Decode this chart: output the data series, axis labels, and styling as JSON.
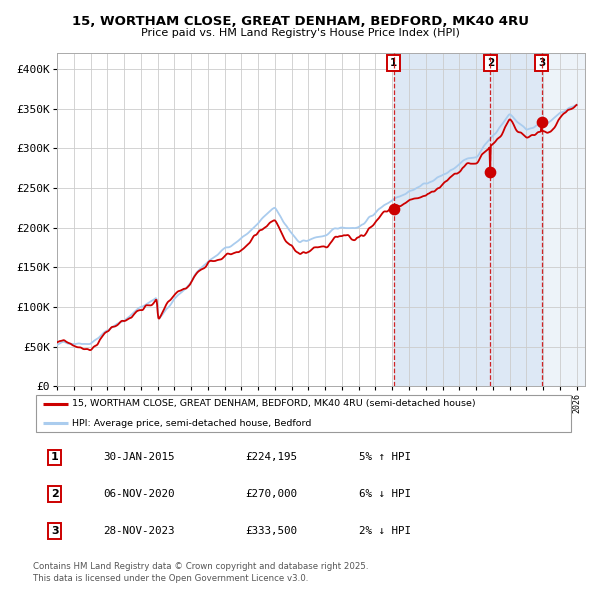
{
  "title_line1": "15, WORTHAM CLOSE, GREAT DENHAM, BEDFORD, MK40 4RU",
  "title_line2": "Price paid vs. HM Land Registry's House Price Index (HPI)",
  "legend_red": "15, WORTHAM CLOSE, GREAT DENHAM, BEDFORD, MK40 4RU (semi-detached house)",
  "legend_blue": "HPI: Average price, semi-detached house, Bedford",
  "transaction1": {
    "label": "1",
    "date": "30-JAN-2015",
    "price": "£224,195",
    "pct": "5% ↑ HPI"
  },
  "transaction2": {
    "label": "2",
    "date": "06-NOV-2020",
    "price": "£270,000",
    "pct": "6% ↓ HPI"
  },
  "transaction3": {
    "label": "3",
    "date": "28-NOV-2023",
    "price": "£333,500",
    "pct": "2% ↓ HPI"
  },
  "footer": "Contains HM Land Registry data © Crown copyright and database right 2025.\nThis data is licensed under the Open Government Licence v3.0.",
  "background_color": "#ffffff",
  "grid_color": "#cccccc",
  "red_color": "#cc0000",
  "blue_color": "#aaccee",
  "shaded_bg": "#dde8f5",
  "ylim": [
    0,
    420000
  ],
  "yticks": [
    0,
    50000,
    100000,
    150000,
    200000,
    250000,
    300000,
    350000,
    400000
  ],
  "ytick_labels": [
    "£0",
    "£50K",
    "£100K",
    "£150K",
    "£200K",
    "£250K",
    "£300K",
    "£350K",
    "£400K"
  ],
  "xstart_year": 1995,
  "xend_year": 2026,
  "transaction1_year": 2015.08,
  "transaction2_year": 2020.85,
  "transaction3_year": 2023.91,
  "transaction1_price": 224195,
  "transaction2_price": 270000,
  "transaction3_price": 333500
}
